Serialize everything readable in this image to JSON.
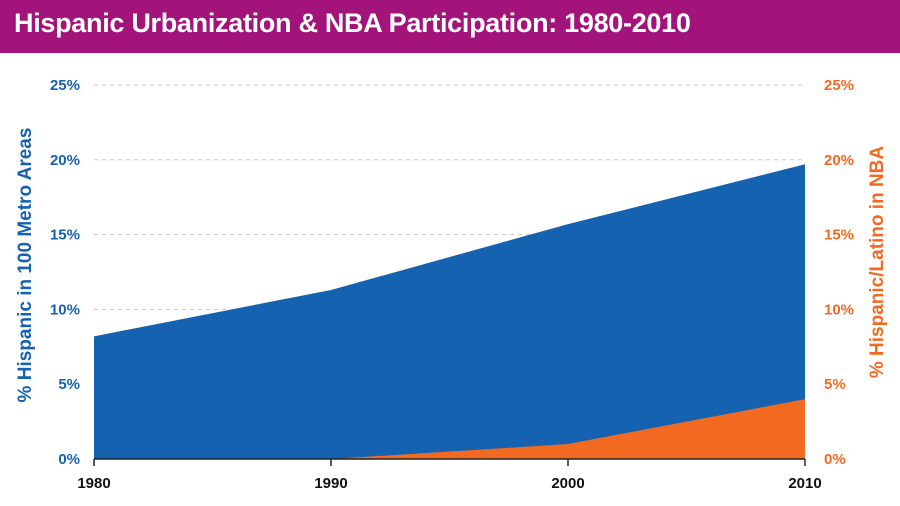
{
  "header": {
    "title": "Hispanic Urbanization & NBA Participation: 1980-2010"
  },
  "chart_data": {
    "type": "area",
    "title": "Hispanic Urbanization & NBA Participation: 1980-2010",
    "x": [
      1980,
      1990,
      2000,
      2010
    ],
    "x_tick_labels": [
      "1980",
      "1990",
      "2000",
      "2010"
    ],
    "y_left_label": "% Hispanic in 100 Metro Areas",
    "y_right_label": "% Hispanic/Latino in NBA",
    "y_tick_labels": [
      "0%",
      "5%",
      "10%",
      "15%",
      "20%",
      "25%"
    ],
    "ylim": [
      0,
      25
    ],
    "grid": true,
    "series": [
      {
        "name": "% Hispanic in 100 Metro Areas",
        "axis": "left",
        "color": "#1462b0",
        "values": [
          8.2,
          11.3,
          15.7,
          19.7
        ]
      },
      {
        "name": "% Hispanic/Latino in NBA",
        "axis": "right",
        "color": "#f26a22",
        "values": [
          0.0,
          0.0,
          1.0,
          4.0
        ]
      }
    ]
  }
}
